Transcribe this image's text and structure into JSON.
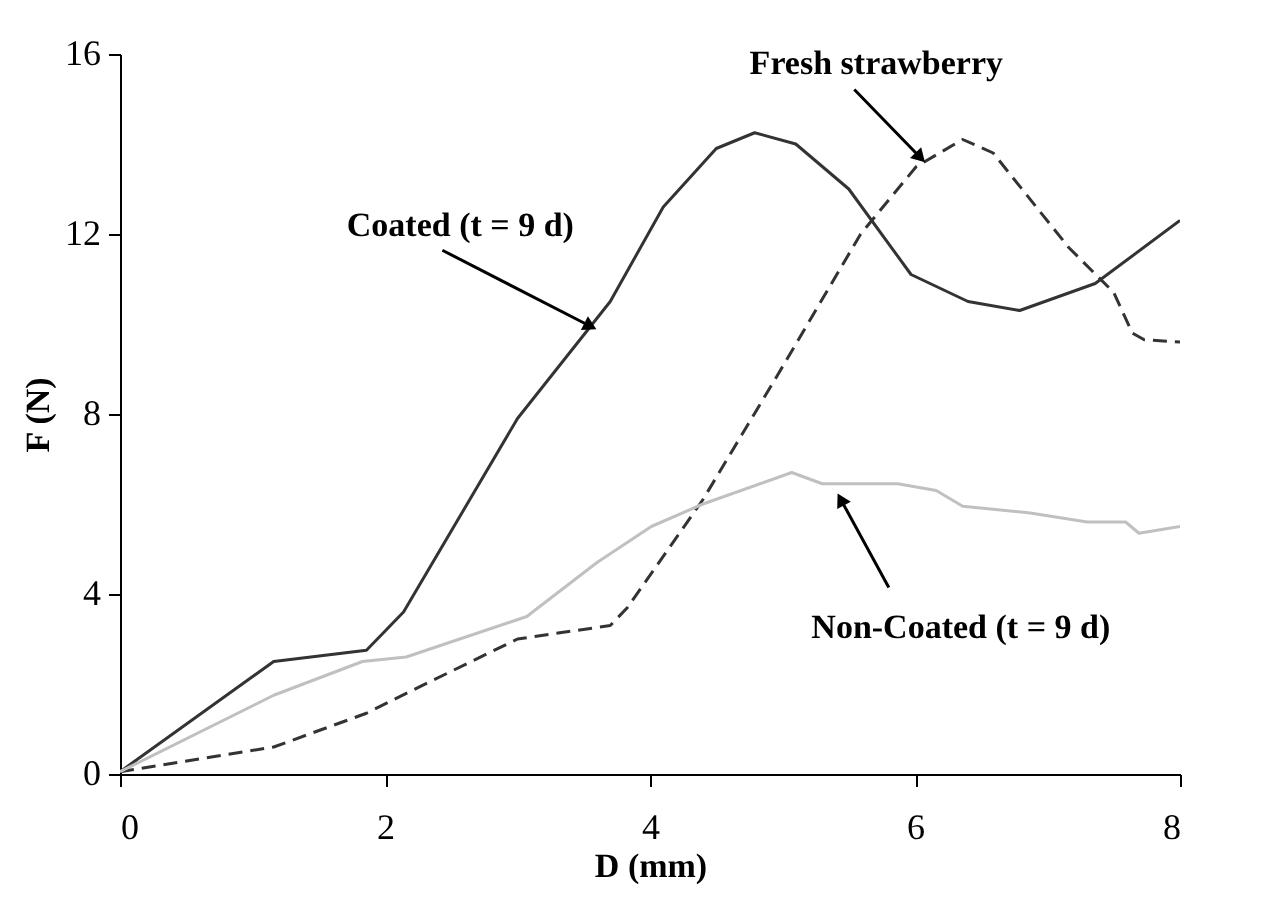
{
  "chart_data": {
    "type": "line",
    "xlabel": "D (mm)",
    "ylabel": "F (N)",
    "xlim": [
      0,
      8
    ],
    "ylim": [
      0,
      16
    ],
    "xticks": [
      0,
      2,
      4,
      6,
      8
    ],
    "yticks": [
      0,
      4,
      8,
      12,
      16
    ],
    "grid": false,
    "series": [
      {
        "color": "#333333",
        "line_style": "solid",
        "x": [
          0,
          1.16,
          1.86,
          2.14,
          3.0,
          3.7,
          4.1,
          4.5,
          4.79,
          5.1,
          5.5,
          5.97,
          6.4,
          6.79,
          7.36,
          8.0
        ],
        "values": [
          0.05,
          2.5,
          2.75,
          3.6,
          7.9,
          10.5,
          12.6,
          13.9,
          14.25,
          14.0,
          13.0,
          11.1,
          10.5,
          10.3,
          10.9,
          12.3
        ]
      },
      {
        "color": "#333333",
        "line_style": "dashed",
        "x": [
          0,
          1.16,
          1.86,
          2.2,
          3.0,
          3.7,
          3.83,
          4.4,
          4.97,
          5.59,
          6.01,
          6.36,
          6.59,
          7.16,
          7.5,
          7.64,
          7.73,
          8.0
        ],
        "values": [
          0.05,
          0.6,
          1.35,
          1.85,
          3.0,
          3.3,
          3.7,
          6.1,
          8.9,
          12.0,
          13.5,
          14.1,
          13.8,
          11.7,
          10.7,
          9.8,
          9.65,
          9.6
        ]
      },
      {
        "color": "#c0c0c0",
        "line_style": "solid",
        "x": [
          0,
          1.16,
          1.83,
          2.16,
          3.07,
          3.6,
          4.01,
          4.4,
          5.07,
          5.3,
          5.87,
          6.16,
          6.36,
          6.87,
          7.3,
          7.59,
          7.69,
          8.0
        ],
        "values": [
          0.05,
          1.75,
          2.5,
          2.6,
          3.5,
          4.7,
          5.5,
          6.0,
          6.7,
          6.45,
          6.45,
          6.3,
          5.95,
          5.8,
          5.6,
          5.6,
          5.35,
          5.5
        ]
      }
    ],
    "annotations": [
      {
        "text": "Coated (t = 9 d)",
        "x": 3.55,
        "y": 9.95
      },
      {
        "text": "Fresh strawberry",
        "x": 6.04,
        "y": 13.7
      },
      {
        "text": "Non-Coated (t = 9 d)",
        "x": 5.44,
        "y": 6.1
      }
    ]
  }
}
